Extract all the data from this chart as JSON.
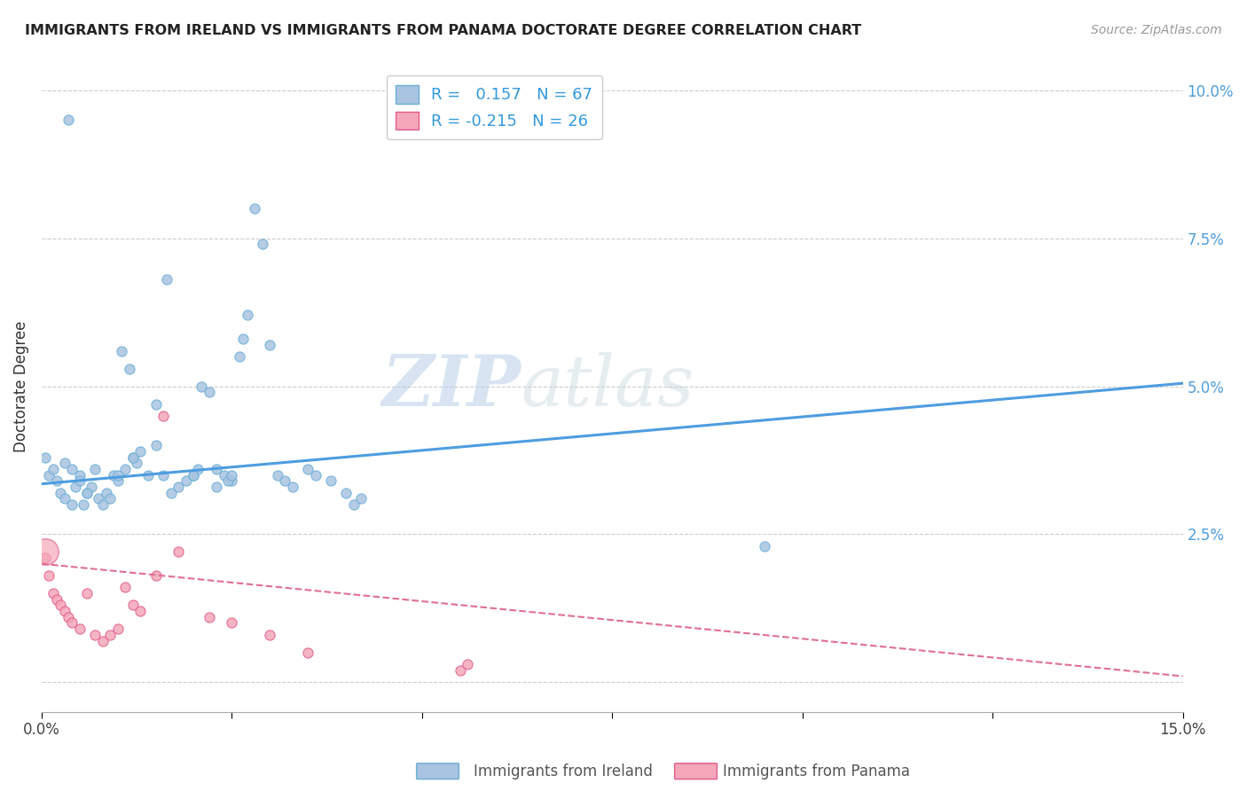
{
  "title": "IMMIGRANTS FROM IRELAND VS IMMIGRANTS FROM PANAMA DOCTORATE DEGREE CORRELATION CHART",
  "source": "Source: ZipAtlas.com",
  "ylabel": "Doctorate Degree",
  "ireland_color": "#a8c4e0",
  "ireland_edge_color": "#6aaed6",
  "panama_color": "#f4a7b9",
  "panama_edge_color": "#e05c8a",
  "ireland_line_color": "#4d9de0",
  "panama_line_color": "#e07090",
  "legend_r_ireland": "0.157",
  "legend_n_ireland": "67",
  "legend_r_panama": "-0.215",
  "legend_n_panama": "26",
  "watermark_zip": "ZIP",
  "watermark_atlas": "atlas",
  "xlim": [
    0.0,
    15.0
  ],
  "ylim": [
    -0.5,
    10.5
  ],
  "ireland_x": [
    0.05,
    0.1,
    0.15,
    0.2,
    0.25,
    0.3,
    0.35,
    0.4,
    0.45,
    0.5,
    0.55,
    0.6,
    0.65,
    0.7,
    0.75,
    0.8,
    0.85,
    0.9,
    0.95,
    1.0,
    1.05,
    1.1,
    1.15,
    1.2,
    1.25,
    1.3,
    1.4,
    1.5,
    1.6,
    1.7,
    1.8,
    1.9,
    2.0,
    2.1,
    2.2,
    2.3,
    2.4,
    2.5,
    2.6,
    2.7,
    2.8,
    2.9,
    3.0,
    3.1,
    3.2,
    3.3,
    3.5,
    3.6,
    3.8,
    4.0,
    4.1,
    4.2,
    1.65,
    2.05,
    2.45,
    2.65,
    0.3,
    0.4,
    0.5,
    0.6,
    1.0,
    1.2,
    1.5,
    2.0,
    2.3,
    2.5,
    9.5
  ],
  "ireland_y": [
    3.8,
    3.5,
    3.6,
    3.4,
    3.2,
    3.1,
    9.5,
    3.0,
    3.3,
    3.5,
    3.0,
    3.2,
    3.3,
    3.6,
    3.1,
    3.0,
    3.2,
    3.1,
    3.5,
    3.4,
    5.6,
    3.6,
    5.3,
    3.8,
    3.7,
    3.9,
    3.5,
    4.7,
    3.5,
    3.2,
    3.3,
    3.4,
    3.5,
    5.0,
    4.9,
    3.6,
    3.5,
    3.4,
    5.5,
    6.2,
    8.0,
    7.4,
    5.7,
    3.5,
    3.4,
    3.3,
    3.6,
    3.5,
    3.4,
    3.2,
    3.0,
    3.1,
    6.8,
    3.6,
    3.4,
    5.8,
    3.7,
    3.6,
    3.4,
    3.2,
    3.5,
    3.8,
    4.0,
    3.5,
    3.3,
    3.5,
    2.3
  ],
  "panama_x": [
    0.05,
    0.1,
    0.15,
    0.2,
    0.25,
    0.3,
    0.35,
    0.4,
    0.5,
    0.6,
    0.7,
    0.8,
    0.9,
    1.0,
    1.1,
    1.2,
    1.3,
    1.5,
    1.6,
    1.8,
    2.2,
    2.5,
    3.0,
    3.5,
    5.5,
    5.6
  ],
  "panama_y": [
    2.1,
    1.8,
    1.5,
    1.4,
    1.3,
    1.2,
    1.1,
    1.0,
    0.9,
    1.5,
    0.8,
    0.7,
    0.8,
    0.9,
    1.6,
    1.3,
    1.2,
    1.8,
    4.5,
    2.2,
    1.1,
    1.0,
    0.8,
    0.5,
    0.2,
    0.3
  ],
  "panama_big_x": [
    0.05
  ],
  "panama_big_y": [
    2.2
  ],
  "ireland_line_x0": 0.0,
  "ireland_line_x1": 15.0,
  "ireland_line_y0": 3.35,
  "ireland_line_y1": 5.05,
  "panama_line_x0": 0.0,
  "panama_line_x1": 15.0,
  "panama_line_y0": 2.0,
  "panama_line_y1": 0.1
}
